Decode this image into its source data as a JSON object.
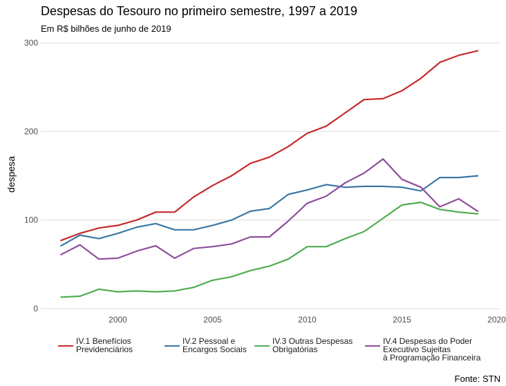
{
  "chart_data": {
    "type": "line",
    "title": "Despesas do Tesouro no primeiro semestre, 1997 a 2019",
    "subtitle": "Em R$ bilhões de junho de 2019",
    "xlabel": "",
    "ylabel": "despesa",
    "source": "Fonte: STN",
    "xlim": [
      1996.2,
      2020
    ],
    "ylim": [
      0,
      300
    ],
    "xticks": [
      2000,
      2005,
      2010,
      2015,
      2020
    ],
    "yticks": [
      0,
      100,
      200,
      300
    ],
    "grid": true,
    "legend_position": "bottom",
    "x": [
      1997,
      1998,
      1999,
      2000,
      2001,
      2002,
      2003,
      2004,
      2005,
      2006,
      2007,
      2008,
      2009,
      2010,
      2011,
      2012,
      2013,
      2014,
      2015,
      2016,
      2017,
      2018,
      2019
    ],
    "series": [
      {
        "name": "IV.1  Benefícios\nPrevidenciários",
        "color": "#c62a2a",
        "values": [
          77,
          85,
          91,
          94,
          100,
          109,
          109,
          126,
          139,
          150,
          164,
          171,
          183,
          198,
          206,
          221,
          236,
          237,
          246,
          260,
          278,
          286,
          291
        ]
      },
      {
        "name": "IV.2  Pessoal e\nEncargos Sociais",
        "color": "#3a78a6",
        "values": [
          71,
          83,
          79,
          85,
          92,
          96,
          89,
          89,
          94,
          100,
          110,
          113,
          129,
          134,
          140,
          137,
          138,
          138,
          137,
          133,
          148,
          148,
          150
        ]
      },
      {
        "name": "IV.3  Outras Despesas\nObrigatórias",
        "color": "#4fac4f",
        "values": [
          13,
          14,
          22,
          19,
          20,
          19,
          20,
          24,
          32,
          36,
          43,
          48,
          56,
          70,
          70,
          79,
          87,
          102,
          117,
          120,
          112,
          109,
          107
        ]
      },
      {
        "name": "IV.4  Despesas do Poder\nExecutivo Sujeitas\nà Programação Financeira",
        "color": "#8e4e9c",
        "values": [
          61,
          72,
          56,
          57,
          65,
          71,
          57,
          68,
          70,
          73,
          81,
          81,
          99,
          119,
          127,
          142,
          153,
          169,
          146,
          137,
          115,
          124,
          110
        ]
      }
    ]
  }
}
